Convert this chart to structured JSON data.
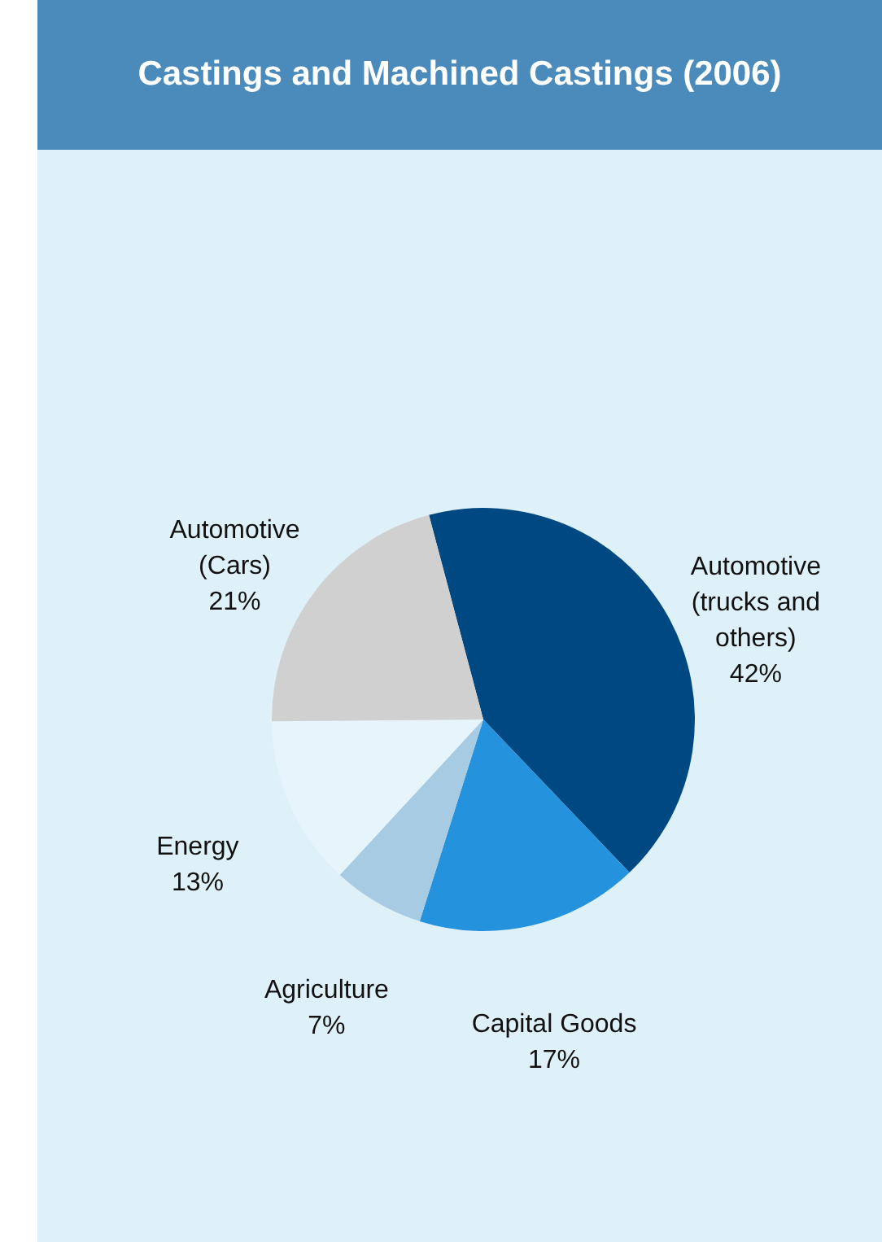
{
  "chart_data": {
    "type": "pie",
    "title": "Castings and Machined Castings (2006)",
    "categories": [
      "Automotive (trucks and others)",
      "Capital Goods",
      "Agriculture",
      "Energy",
      "Automotive (Cars)"
    ],
    "values": [
      42,
      17,
      7,
      13,
      21
    ],
    "value_labels": [
      "42%",
      "17%",
      "7%",
      "13%",
      "21%"
    ],
    "colors": [
      "#004882",
      "#2492dc",
      "#a7cbe2",
      "#e6f4fb",
      "#d0d0d0"
    ]
  }
}
